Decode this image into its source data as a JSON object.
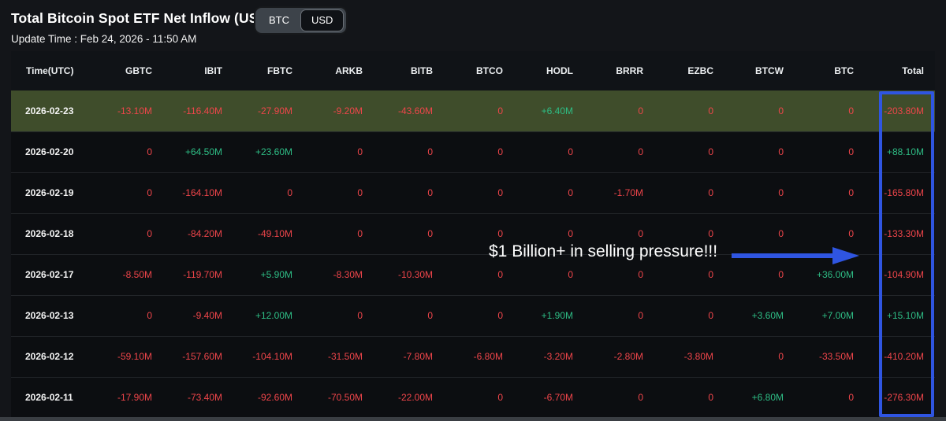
{
  "header": {
    "title": "Total Bitcoin Spot ETF Net Inflow (USD)",
    "toggle": {
      "options": [
        "BTC",
        "USD"
      ],
      "selected": "USD"
    },
    "update_time": "Update Time : Feb 24, 2026 - 11:50 AM"
  },
  "table": {
    "columns": [
      "Time(UTC)",
      "GBTC",
      "IBIT",
      "FBTC",
      "ARKB",
      "BITB",
      "BTCO",
      "HODL",
      "BRRR",
      "EZBC",
      "BTCW",
      "BTC",
      "Total"
    ],
    "rows": [
      {
        "date": "2026-02-23",
        "highlighted": true,
        "values": [
          "-13.10M",
          "-116.40M",
          "-27.90M",
          "-9.20M",
          "-43.60M",
          "0",
          "+6.40M",
          "0",
          "0",
          "0",
          "0",
          "-203.80M"
        ]
      },
      {
        "date": "2026-02-20",
        "highlighted": false,
        "values": [
          "0",
          "+64.50M",
          "+23.60M",
          "0",
          "0",
          "0",
          "0",
          "0",
          "0",
          "0",
          "0",
          "+88.10M"
        ]
      },
      {
        "date": "2026-02-19",
        "highlighted": false,
        "values": [
          "0",
          "-164.10M",
          "0",
          "0",
          "0",
          "0",
          "0",
          "-1.70M",
          "0",
          "0",
          "0",
          "-165.80M"
        ]
      },
      {
        "date": "2026-02-18",
        "highlighted": false,
        "values": [
          "0",
          "-84.20M",
          "-49.10M",
          "0",
          "0",
          "0",
          "0",
          "0",
          "0",
          "0",
          "0",
          "-133.30M"
        ]
      },
      {
        "date": "2026-02-17",
        "highlighted": false,
        "values": [
          "-8.50M",
          "-119.70M",
          "+5.90M",
          "-8.30M",
          "-10.30M",
          "0",
          "0",
          "0",
          "0",
          "0",
          "+36.00M",
          "-104.90M"
        ]
      },
      {
        "date": "2026-02-13",
        "highlighted": false,
        "values": [
          "0",
          "-9.40M",
          "+12.00M",
          "0",
          "0",
          "0",
          "+1.90M",
          "0",
          "0",
          "+3.60M",
          "+7.00M",
          "+15.10M"
        ]
      },
      {
        "date": "2026-02-12",
        "highlighted": false,
        "values": [
          "-59.10M",
          "-157.60M",
          "-104.10M",
          "-31.50M",
          "-7.80M",
          "-6.80M",
          "-3.20M",
          "-2.80M",
          "-3.80M",
          "0",
          "-33.50M",
          "-410.20M"
        ]
      },
      {
        "date": "2026-02-11",
        "highlighted": false,
        "values": [
          "-17.90M",
          "-73.40M",
          "-92.60M",
          "-70.50M",
          "-22.00M",
          "0",
          "-6.70M",
          "0",
          "0",
          "+6.80M",
          "0",
          "-276.30M"
        ]
      }
    ]
  },
  "annotation": {
    "text": "$1 Billion+ in selling pressure!!!"
  },
  "colors": {
    "negative": "#ef454a",
    "positive": "#2ebd85",
    "highlight_row_bg": "#3f4d2b",
    "annotation_blue": "#2f55e1",
    "page_bg": "#131519",
    "table_bg": "#0c0e11"
  }
}
